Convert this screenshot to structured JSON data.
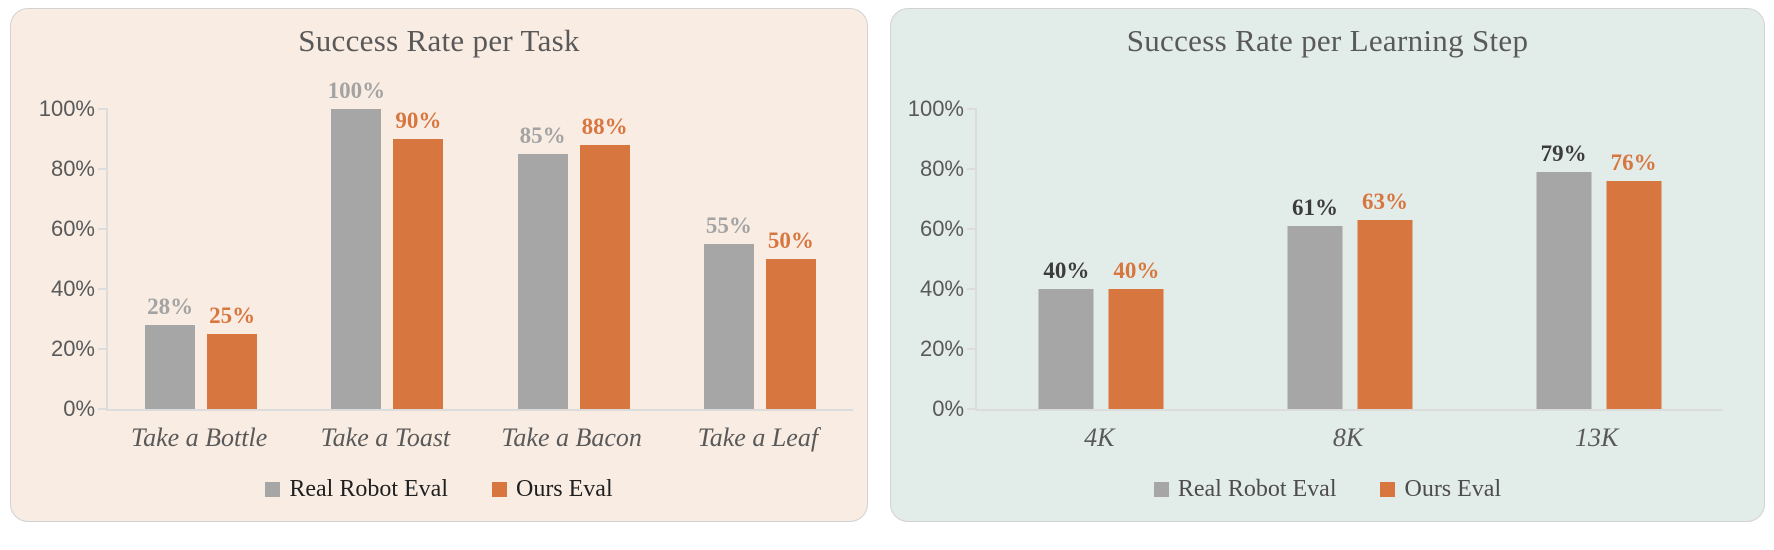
{
  "page": {
    "background": "#ffffff"
  },
  "chart_data": [
    {
      "type": "bar",
      "title": "Success Rate per Task",
      "categories": [
        "Take a Bottle",
        "Take a Toast",
        "Take a Bacon",
        "Take a Leaf"
      ],
      "series": [
        {
          "name": "Real Robot Eval",
          "values": [
            28,
            100,
            85,
            55
          ]
        },
        {
          "name": "Ours Eval",
          "values": [
            25,
            90,
            88,
            50
          ]
        }
      ],
      "value_suffix": "%",
      "xlabel": "",
      "ylabel": "",
      "ylim": [
        0,
        100
      ],
      "y_tick_labels": [
        "0%",
        "20%",
        "40%",
        "60%",
        "80%",
        "100%"
      ],
      "grid": false,
      "legend_position": "bottom",
      "colors": {
        "panel": "#f9ece3",
        "series": [
          "#a6a6a6",
          "#d8763f"
        ],
        "data_labels": [
          "#a3a3a3",
          "#d8763f"
        ],
        "axis_text": "#595959",
        "axis_line": "#dcdcdc",
        "legend_text": "#1f1f1f"
      }
    },
    {
      "type": "bar",
      "title": "Success Rate per Learning Step",
      "categories": [
        "4K",
        "8K",
        "13K"
      ],
      "series": [
        {
          "name": "Real Robot Eval",
          "values": [
            40,
            61,
            79
          ]
        },
        {
          "name": "Ours Eval",
          "values": [
            40,
            63,
            76
          ]
        }
      ],
      "value_suffix": "%",
      "xlabel": "",
      "ylabel": "",
      "ylim": [
        0,
        100
      ],
      "y_tick_labels": [
        "0%",
        "20%",
        "40%",
        "60%",
        "80%",
        "100%"
      ],
      "grid": false,
      "legend_position": "bottom",
      "colors": {
        "panel": "#e2ece9",
        "series": [
          "#a6a6a6",
          "#d8763f"
        ],
        "data_labels": [
          "#3c3c3c",
          "#d8763f"
        ],
        "axis_text": "#595959",
        "axis_line": "#dcdcdc",
        "legend_text": "#4d4d4d"
      }
    }
  ]
}
